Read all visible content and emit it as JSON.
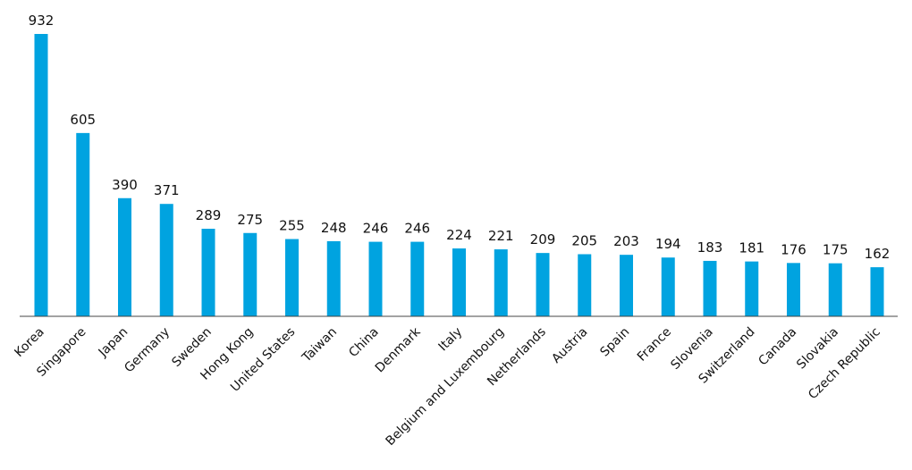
{
  "chart_data": {
    "type": "bar",
    "categories": [
      "Korea",
      "Singapore",
      "Japan",
      "Germany",
      "Sweden",
      "Hong Kong",
      "United States",
      "Taiwan",
      "China",
      "Denmark",
      "Italy",
      "Belgium and Luxembourg",
      "Netherlands",
      "Austria",
      "Spain",
      "France",
      "Slovenia",
      "Switzerland",
      "Canada",
      "Slovakia",
      "Czech Republic"
    ],
    "values": [
      932,
      605,
      390,
      371,
      289,
      275,
      255,
      248,
      246,
      246,
      224,
      221,
      209,
      205,
      203,
      194,
      183,
      181,
      176,
      175,
      162
    ],
    "color": "#00a3e0"
  }
}
